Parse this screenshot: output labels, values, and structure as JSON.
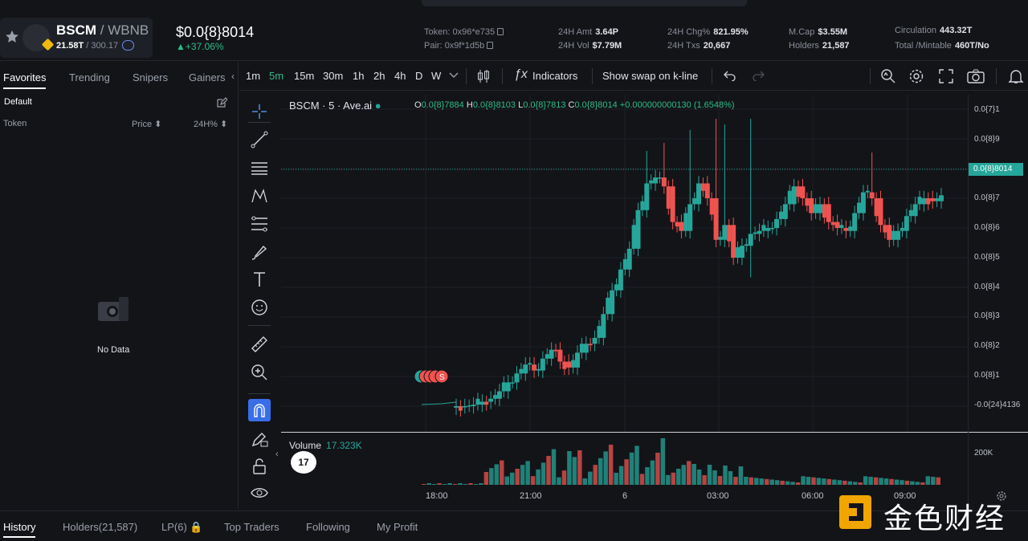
{
  "header": {
    "symbol": "BSCM",
    "pair_sep": " / ",
    "quote": "WBNB",
    "supply": "21.58T",
    "supply_sep": " / ",
    "supply2": "300.17",
    "price": "$0.0{8}8014",
    "change": "▲+37.06%",
    "token_label": "Token:",
    "token_val": "0x96*e735",
    "pair_label": "Pair:",
    "pair_val": "0x9f*1d5b",
    "amt_label": "24H Amt",
    "amt_val": "3.64P",
    "vol_label": "24H Vol",
    "vol_val": "$7.79M",
    "chg_label": "24H Chg%",
    "chg_val": "821.95%",
    "txs_label": "24H Txs",
    "txs_val": "20,667",
    "mcap_label": "M.Cap",
    "mcap_val": "$3.55M",
    "holders_label": "Holders",
    "holders_val": "21,587",
    "circ_label": "Circulation",
    "circ_val": "443.32T",
    "total_label": "Total /Mintable",
    "total_val": "460T/No"
  },
  "left": {
    "tabs": [
      "Favorites",
      "Trending",
      "Snipers",
      "Gainers"
    ],
    "group": "Default",
    "col_token": "Token",
    "col_price": "Price ⬍",
    "col_24h": "24H% ⬍",
    "nodata": "No Data"
  },
  "toolbar": {
    "timeframes": [
      "1m",
      "5m",
      "15m",
      "30m",
      "1h",
      "2h",
      "4h",
      "D",
      "W"
    ],
    "active_tf": "5m",
    "indicators": "Indicators",
    "swap": "Show swap on k-line"
  },
  "chart": {
    "legend": "BSCM · 5 · Ave.ai",
    "o_label": "O",
    "o": "0.0{8}7884",
    "h_label": "H",
    "h": "0.0{8}8103",
    "l_label": "L",
    "l": "0.0{8}7813",
    "c_label": "C",
    "c": "0.0{8}8014",
    "delta": "+0.000000000130 (1.6548%)",
    "current_tag": "0.0{8}8014",
    "volume_label": "Volume",
    "volume_val": "17.323K",
    "vol_axis": "200K",
    "tv": "17",
    "trade_marker": "S"
  },
  "chart_data": {
    "type": "candlestick",
    "y_ticks": [
      "0.0{7}1",
      "0.0{8}9",
      "0.0{8}7",
      "0.0{8}6",
      "0.0{8}5",
      "0.0{8}4",
      "0.0{8}3",
      "0.0{8}2",
      "0.0{8}1",
      "-0.0{24}4136"
    ],
    "x_ticks": [
      "18:00",
      "21:00",
      "6",
      "03:00",
      "06:00",
      "09:00"
    ],
    "approx_close_e9": [
      1,
      1,
      1.05,
      1.15,
      1.25,
      1.5,
      1.8,
      2.1,
      2.4,
      2.2,
      2.6,
      2.9,
      2.5,
      2.3,
      2.8,
      3.1,
      3.3,
      4.1,
      4.9,
      5.6,
      6.3,
      7.6,
      8.5,
      8.7,
      8.4,
      7.2,
      6.9,
      7.8,
      8.5,
      8.0,
      6.6,
      7.1,
      6.0,
      6.4,
      6.8,
      6.9,
      7.0,
      7.3,
      7.8,
      8.4,
      8.0,
      7.5,
      7.8,
      7.2,
      7.0,
      6.9,
      7.5,
      8.2,
      8.0,
      7.1,
      6.6,
      6.9,
      7.4,
      7.8,
      8.0,
      7.9,
      8.1
    ]
  },
  "draw_tools": [
    "crosshair-icon",
    "trendline-icon",
    "horizontal-lines-icon",
    "pattern-icon",
    "fib-icon",
    "brush-icon",
    "text-icon",
    "emoji-icon",
    "ruler-icon",
    "zoom-in-icon",
    "magnet-icon",
    "pencil-lock-icon",
    "lock-icon",
    "eye-icon"
  ],
  "bottom": {
    "tabs": [
      "History",
      "Holders(21,587)",
      "LP(6) 🔒",
      "Top Traders",
      "Following",
      "My Profit"
    ]
  },
  "watermark": "金色财经"
}
